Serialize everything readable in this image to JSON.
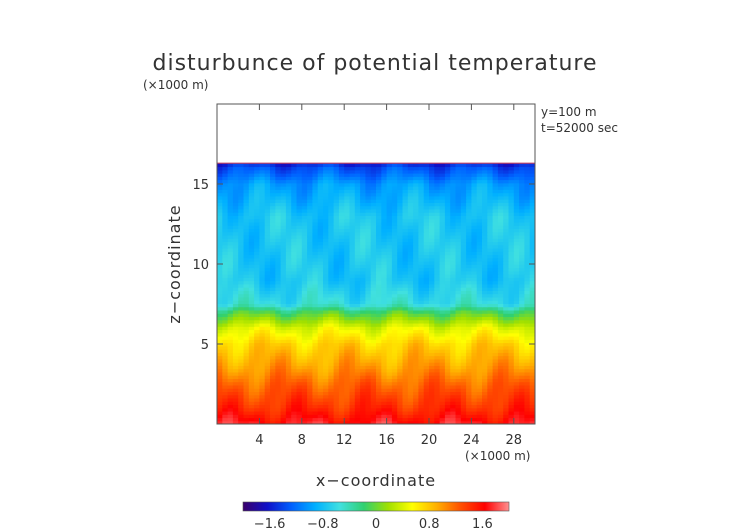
{
  "chart_data": {
    "type": "heatmap",
    "title": "disturbunce of potential temperature",
    "unit_label": "(×1000 m)",
    "xlabel": "x−coordinate",
    "ylabel": "z−coordinate",
    "x_unit_label": "(×1000 m)",
    "annotations": [
      "y=100 m",
      "t=52000 sec"
    ],
    "xlim": [
      0,
      30
    ],
    "ylim": [
      0,
      20
    ],
    "x_ticks": [
      4,
      8,
      12,
      16,
      20,
      24,
      28
    ],
    "x_tick_labels": [
      "4",
      "8",
      "12",
      "16",
      "20",
      "24",
      "28"
    ],
    "y_ticks": [
      5,
      10,
      15
    ],
    "y_tick_labels": [
      "5",
      "10",
      "15"
    ],
    "colorbar": {
      "range": [
        -2,
        2
      ],
      "ticks": [
        -1.6,
        -0.8,
        0,
        0.8,
        1.6
      ],
      "tick_labels": [
        "−1.6",
        "−0.8",
        "0",
        "0.8",
        "1.6"
      ],
      "colors": [
        "#3a006a",
        "#1010c8",
        "#0060ff",
        "#00b0ff",
        "#40e0e0",
        "#30d070",
        "#a0e000",
        "#ffff00",
        "#ffb000",
        "#ff5000",
        "#ff0000",
        "#ff9090"
      ]
    },
    "field_domain_top": 16.3,
    "color_level_by_height": [
      {
        "z": 0.0,
        "value": 1.7
      },
      {
        "z": 1.0,
        "value": 1.45
      },
      {
        "z": 2.5,
        "value": 1.2
      },
      {
        "z": 3.5,
        "value": 1.0
      },
      {
        "z": 5.0,
        "value": 0.75
      },
      {
        "z": 6.0,
        "value": 0.45
      },
      {
        "z": 7.0,
        "value": -0.1
      },
      {
        "z": 7.5,
        "value": -0.55
      },
      {
        "z": 9.0,
        "value": -0.75
      },
      {
        "z": 13.0,
        "value": -0.75
      },
      {
        "z": 15.0,
        "value": -1.0
      },
      {
        "z": 16.0,
        "value": -1.35
      },
      {
        "z": 16.3,
        "value": -1.55
      }
    ]
  }
}
